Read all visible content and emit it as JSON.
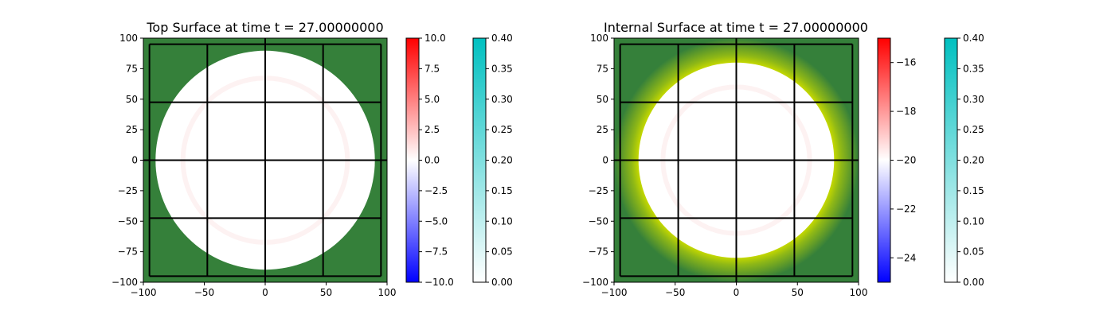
{
  "colors": {
    "land": "#35803a",
    "interior": "#ffffff",
    "grid": "#000000",
    "halo_inner": "#c4d800",
    "halo_outer": "#35803a",
    "diverging": [
      "#0000ff",
      "#ffffff",
      "#ff0000"
    ],
    "sequential": [
      "#ffffff",
      "#00c0c0"
    ]
  },
  "chart_data": [
    {
      "type": "heatmap",
      "title": "Top Surface at time t =    27.00000000",
      "xlim": [
        -100,
        100
      ],
      "ylim": [
        -100,
        100
      ],
      "x_ticks": [
        -100,
        -50,
        0,
        50,
        100
      ],
      "y_ticks": [
        -100,
        -75,
        -50,
        -25,
        0,
        25,
        50,
        75,
        100
      ],
      "x_tick_labels": [
        "−100",
        "−50",
        "0",
        "50",
        "100"
      ],
      "y_tick_labels": [
        "−100",
        "−75",
        "−50",
        "−25",
        "0",
        "25",
        "50",
        "75",
        "100"
      ],
      "field": "disc",
      "disc_radius": 90,
      "halo_width": 0,
      "grid_lines_x": [
        -95,
        -47.5,
        0,
        47.5,
        95
      ],
      "grid_lines_y": [
        -95,
        -47.5,
        0,
        47.5,
        95
      ],
      "colorbars": [
        {
          "colormap": "diverging",
          "range": [
            -10,
            10
          ],
          "ticks": [
            -10,
            -7.5,
            -5,
            -2.5,
            0,
            2.5,
            5,
            7.5,
            10
          ],
          "tick_labels": [
            "−10.0",
            "−7.5",
            "−5.0",
            "−2.5",
            "0.0",
            "2.5",
            "5.0",
            "7.5",
            "10.0"
          ]
        },
        {
          "colormap": "sequential",
          "range": [
            0,
            0.4
          ],
          "ticks": [
            0,
            0.05,
            0.1,
            0.15,
            0.2,
            0.25,
            0.3,
            0.35,
            0.4
          ],
          "tick_labels": [
            "0.00",
            "0.05",
            "0.10",
            "0.15",
            "0.20",
            "0.25",
            "0.30",
            "0.35",
            "0.40"
          ]
        }
      ]
    },
    {
      "type": "heatmap",
      "title": "Internal Surface at time t =    27.00000000",
      "xlim": [
        -100,
        100
      ],
      "ylim": [
        -100,
        100
      ],
      "x_ticks": [
        -100,
        -50,
        0,
        50,
        100
      ],
      "y_ticks": [
        -100,
        -75,
        -50,
        -25,
        0,
        25,
        50,
        75,
        100
      ],
      "x_tick_labels": [
        "−100",
        "−50",
        "0",
        "50",
        "100"
      ],
      "y_tick_labels": [
        "−100",
        "−75",
        "−50",
        "−25",
        "0",
        "25",
        "50",
        "75",
        "100"
      ],
      "field": "disc_with_halo",
      "disc_radius": 80,
      "halo_width": 20,
      "grid_lines_x": [
        -95,
        -47.5,
        0,
        47.5,
        95
      ],
      "grid_lines_y": [
        -95,
        -47.5,
        0,
        47.5,
        95
      ],
      "colorbars": [
        {
          "colormap": "diverging",
          "range": [
            -25,
            -15
          ],
          "ticks": [
            -24,
            -22,
            -20,
            -18,
            -16
          ],
          "tick_labels": [
            "−24",
            "−22",
            "−20",
            "−18",
            "−16"
          ]
        },
        {
          "colormap": "sequential",
          "range": [
            0,
            0.4
          ],
          "ticks": [
            0,
            0.05,
            0.1,
            0.15,
            0.2,
            0.25,
            0.3,
            0.35,
            0.4
          ],
          "tick_labels": [
            "0.00",
            "0.05",
            "0.10",
            "0.15",
            "0.20",
            "0.25",
            "0.30",
            "0.35",
            "0.40"
          ]
        }
      ]
    }
  ]
}
